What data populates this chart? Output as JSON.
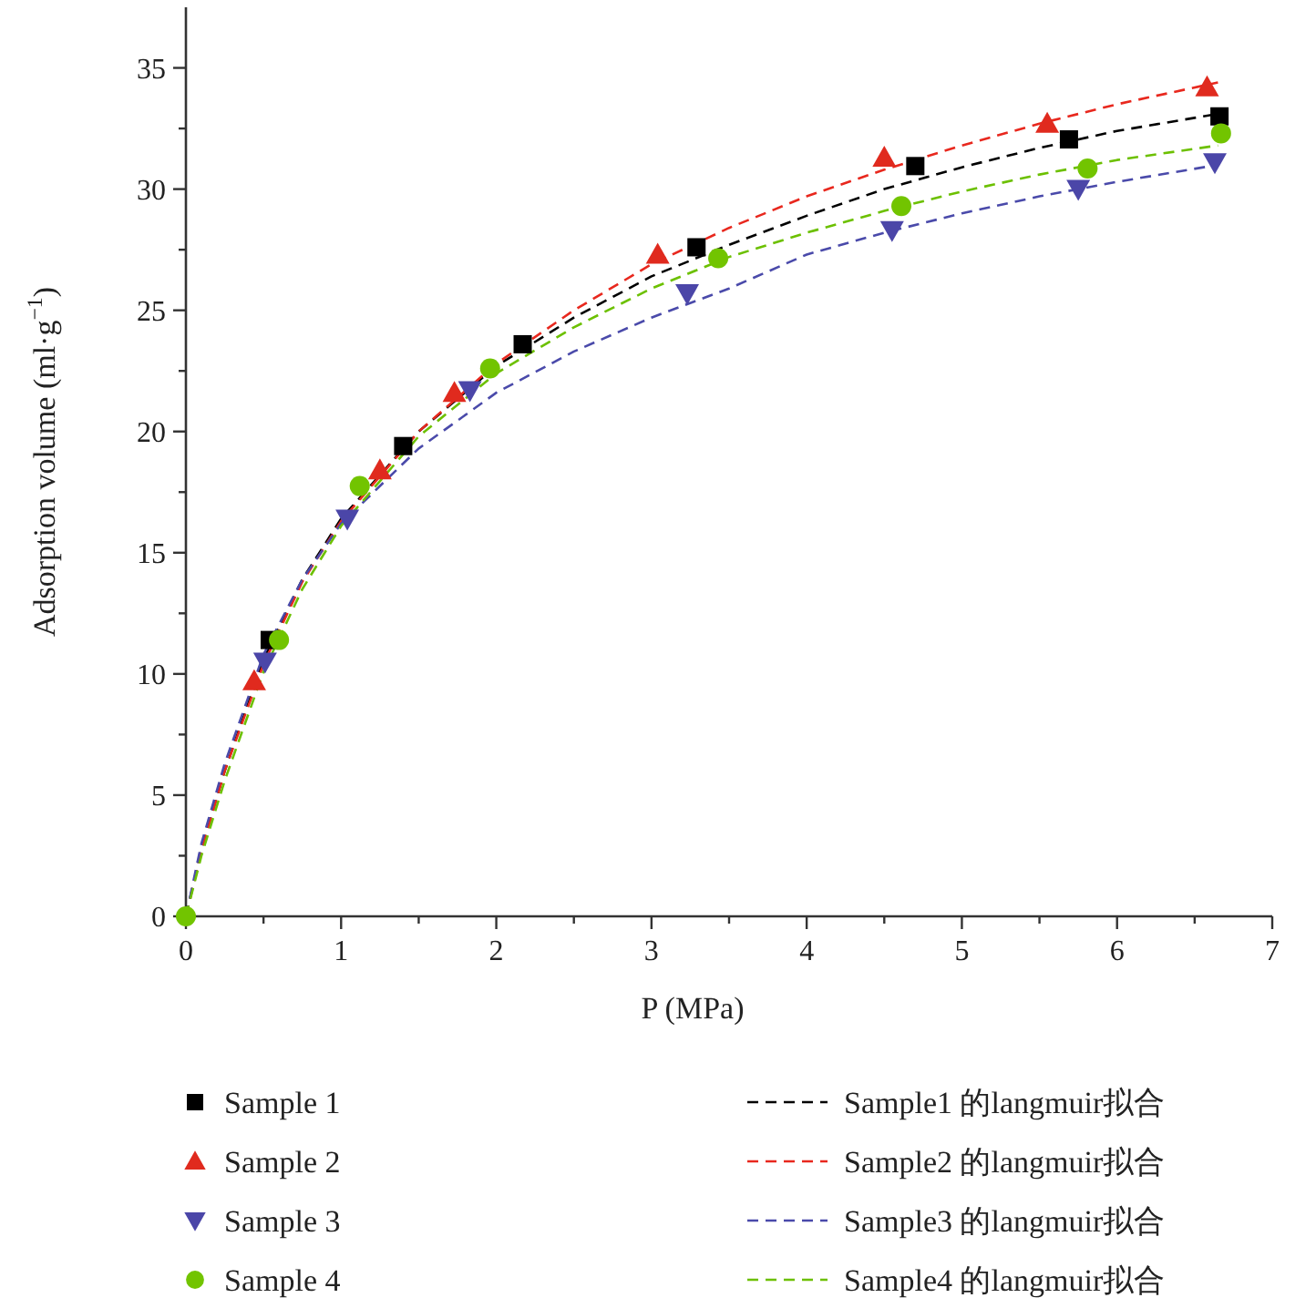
{
  "chart_data": {
    "type": "scatter",
    "xlabel": "P (MPa)",
    "ylabel": "Adsorption volume (ml·g$^{−1}$)",
    "xlim": [
      0,
      7
    ],
    "ylim": [
      0,
      37.5
    ],
    "xticks": [
      0,
      {
        "value": 0.5,
        "label": null
      },
      1,
      {
        "value": 1.5,
        "label": null
      },
      2,
      {
        "value": 2.5,
        "label": null
      },
      3,
      {
        "value": 3.5,
        "label": null
      },
      4,
      {
        "value": 4.5,
        "label": null
      },
      5,
      {
        "value": 5.5,
        "label": null
      },
      6,
      {
        "value": 6.5,
        "label": null
      },
      7
    ],
    "yticks": [
      0,
      {
        "value": 2.5,
        "label": null
      },
      5,
      {
        "value": 7.5,
        "label": null
      },
      10,
      {
        "value": 12.5,
        "label": null
      },
      15,
      {
        "value": 17.5,
        "label": null
      },
      20,
      {
        "value": 22.5,
        "label": null
      },
      25,
      {
        "value": 27.5,
        "label": null
      },
      30,
      {
        "value": 32.5,
        "label": null
      },
      35
    ],
    "legend": "bottom",
    "series": [
      {
        "name": "Sample1 的langmuir拟合",
        "type": "line",
        "line_style": "dashed",
        "color": "#000000",
        "x": [
          0,
          0.1,
          0.25,
          0.5,
          0.75,
          1,
          1.5,
          2,
          2.5,
          3,
          3.5,
          4,
          4.5,
          5,
          5.5,
          6,
          6.65
        ],
        "values": [
          0,
          2.8,
          6.0,
          10.6,
          13.9,
          16.4,
          20.0,
          22.7,
          24.7,
          26.4,
          27.7,
          28.9,
          30.0,
          30.9,
          31.7,
          32.4,
          33.1
        ]
      },
      {
        "name": "Sample2 的langmuir拟合",
        "type": "line",
        "line_style": "dashed",
        "color": "#e8281e",
        "x": [
          0,
          0.1,
          0.25,
          0.5,
          0.75,
          1,
          1.5,
          2,
          2.5,
          3,
          3.5,
          4,
          4.5,
          5,
          5.5,
          6,
          6.65
        ],
        "values": [
          0,
          2.7,
          6.0,
          10.4,
          13.8,
          16.3,
          20.0,
          22.8,
          25.0,
          26.9,
          28.4,
          29.7,
          30.8,
          31.8,
          32.7,
          33.5,
          34.4
        ]
      },
      {
        "name": "Sample3 的langmuir拟合",
        "type": "line",
        "line_style": "dashed",
        "color": "#4a4aaa",
        "x": [
          0,
          0.1,
          0.25,
          0.5,
          0.75,
          1,
          1.5,
          2,
          2.5,
          3,
          3.5,
          4,
          4.5,
          5,
          5.5,
          6,
          6.65
        ],
        "values": [
          0,
          3.0,
          6.3,
          10.8,
          13.9,
          16.2,
          19.3,
          21.6,
          23.3,
          24.7,
          25.9,
          27.3,
          28.2,
          29.0,
          29.7,
          30.3,
          31.0
        ]
      },
      {
        "name": "Sample4 的langmuir拟合",
        "type": "line",
        "line_style": "dashed",
        "color": "#6cc000",
        "x": [
          0,
          0.1,
          0.25,
          0.5,
          0.75,
          1,
          1.5,
          2,
          2.5,
          3,
          3.5,
          4,
          4.5,
          5,
          5.5,
          6,
          6.65
        ],
        "values": [
          0,
          2.5,
          5.6,
          10.1,
          13.5,
          16.1,
          19.8,
          22.4,
          24.3,
          25.9,
          27.2,
          28.2,
          29.1,
          29.9,
          30.6,
          31.2,
          31.8
        ]
      },
      {
        "name": "Sample 1",
        "marker": "square",
        "color": "#000000",
        "x": [
          0.54,
          1.4,
          2.17,
          3.29,
          4.7,
          5.69,
          6.66
        ],
        "values": [
          11.4,
          19.4,
          23.6,
          27.6,
          30.95,
          32.05,
          33.0
        ]
      },
      {
        "name": "Sample 2",
        "marker": "triangle",
        "color": "#e02a1e",
        "x": [
          0.44,
          1.25,
          1.73,
          3.04,
          4.5,
          5.55,
          6.58
        ],
        "values": [
          9.7,
          18.4,
          21.6,
          27.3,
          31.3,
          32.7,
          34.2
        ]
      },
      {
        "name": "Sample 3",
        "marker": "triangle-down",
        "color": "#4b46a8",
        "x": [
          0.51,
          1.04,
          1.83,
          3.23,
          4.55,
          5.75,
          6.63
        ],
        "values": [
          10.5,
          16.4,
          21.7,
          25.7,
          28.3,
          30.0,
          31.1
        ]
      },
      {
        "name": "Sample 4",
        "marker": "circle",
        "color": "#72c400",
        "x": [
          0,
          0.6,
          1.12,
          1.96,
          3.43,
          4.61,
          5.81,
          6.67
        ],
        "values": [
          0,
          11.4,
          17.75,
          22.6,
          27.15,
          29.3,
          30.85,
          32.3
        ]
      }
    ]
  }
}
